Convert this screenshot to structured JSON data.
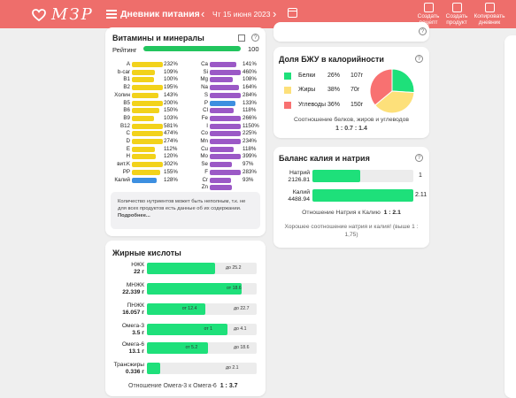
{
  "header": {
    "logo_text": "МЗР",
    "title": "Дневник питания",
    "date": "Чт 15 июня 2023",
    "actions": [
      {
        "line1": "Создать",
        "line2": "рецепт"
      },
      {
        "line1": "Создать",
        "line2": "продукт"
      },
      {
        "line1": "Копировать",
        "line2": "дневник"
      }
    ]
  },
  "vitamins": {
    "title": "Витамины и минералы",
    "rating_label": "Рейтинг",
    "rating_value": "100",
    "rating_fraction": 1.0,
    "left": [
      {
        "name": "A",
        "pct": "232%",
        "value": 232
      },
      {
        "name": "b-car",
        "pct": "109%",
        "value": 109
      },
      {
        "name": "B1",
        "pct": "100%",
        "value": 100
      },
      {
        "name": "B2",
        "pct": "195%",
        "value": 195
      },
      {
        "name": "Холин",
        "pct": "143%",
        "value": 143
      },
      {
        "name": "B5",
        "pct": "200%",
        "value": 200
      },
      {
        "name": "B6",
        "pct": "150%",
        "value": 150
      },
      {
        "name": "B9",
        "pct": "103%",
        "value": 103
      },
      {
        "name": "B12",
        "pct": "581%",
        "value": 581
      },
      {
        "name": "C",
        "pct": "474%",
        "value": 474
      },
      {
        "name": "D",
        "pct": "274%",
        "value": 274
      },
      {
        "name": "E",
        "pct": "112%",
        "value": 112
      },
      {
        "name": "H",
        "pct": "120%",
        "value": 120
      },
      {
        "name": "вит.K",
        "pct": "302%",
        "value": 302
      },
      {
        "name": "PP",
        "pct": "155%",
        "value": 155
      },
      {
        "name": "Калий",
        "pct": "128%",
        "value": 128
      }
    ],
    "right": [
      {
        "name": "Ca",
        "pct": "141%",
        "value": 141
      },
      {
        "name": "Si",
        "pct": "460%",
        "value": 460
      },
      {
        "name": "Mg",
        "pct": "108%",
        "value": 108
      },
      {
        "name": "Na",
        "pct": "164%",
        "value": 164
      },
      {
        "name": "S",
        "pct": "284%",
        "value": 284
      },
      {
        "name": "P",
        "pct": "133%",
        "value": 133
      },
      {
        "name": "Cl",
        "pct": "118%",
        "value": 118
      },
      {
        "name": "Fe",
        "pct": "266%",
        "value": 266
      },
      {
        "name": "I",
        "pct": "1150%",
        "value": 1150
      },
      {
        "name": "Co",
        "pct": "225%",
        "value": 225
      },
      {
        "name": "Mn",
        "pct": "234%",
        "value": 234
      },
      {
        "name": "Cu",
        "pct": "118%",
        "value": 118
      },
      {
        "name": "Mo",
        "pct": "399%",
        "value": 399
      },
      {
        "name": "Se",
        "pct": "97%",
        "value": 97
      },
      {
        "name": "F",
        "pct": "283%",
        "value": 283
      },
      {
        "name": "Cr",
        "pct": "93%",
        "value": 93
      },
      {
        "name": "Zn",
        "pct": "",
        "value": 100
      }
    ],
    "note_text": "Количество нутриентов может быть неполным, т.к. не для всех продуктов есть данные об их содержании.",
    "note_link": "Подробнее...",
    "colors": {
      "vitamin": "#f2d21b",
      "mineral": "#9b59c6",
      "potassium": "#3d8fe0",
      "zinc": "#9b59c6",
      "rating": "#22c55e"
    }
  },
  "fatty": {
    "title": "Жирные кислоты",
    "rows": [
      {
        "name": "НЖК",
        "value": "22 г",
        "fill": 0.62,
        "label": "до 25.2"
      },
      {
        "name": "МНЖК",
        "value": "22.339 г",
        "fill": 0.86,
        "label": "от 18.6"
      },
      {
        "name": "ПНЖК",
        "value": "16.057 г",
        "fill": 0.53,
        "label": "от 12.4",
        "label2": "до 22.7"
      },
      {
        "name": "Омега-3",
        "value": "3.5 г",
        "fill": 0.73,
        "label": "от 1",
        "label2": "до 4.1"
      },
      {
        "name": "Омега-6",
        "value": "13.1 г",
        "fill": 0.56,
        "label": "от 5.2",
        "label2": "до 18.6"
      },
      {
        "name": "Трансжиры",
        "value": "0.336 г",
        "fill": 0.12,
        "label": "до 2.1"
      }
    ],
    "ratio_label": "Отношение Омега-3 к Омега-6",
    "ratio_value": "1 : 3.7"
  },
  "bju": {
    "title": "Доля БЖУ в калорийности",
    "rows": [
      {
        "name": "Белки",
        "pct": "26%",
        "grams": "107г",
        "color": "#1ee07a",
        "value": 26
      },
      {
        "name": "Жиры",
        "pct": "38%",
        "grams": "70г",
        "color": "#fde07a",
        "value": 38
      },
      {
        "name": "Углеводы",
        "pct": "36%",
        "grams": "150г",
        "color": "#f87171",
        "value": 36
      }
    ],
    "ratio_label": "Соотношение белков, жиров и углеводов",
    "ratio_value": "1 : 0.7 : 1.4"
  },
  "kna": {
    "title": "Баланс калия и натрия",
    "sodium_label": "Натрий",
    "sodium_value": "2126.81",
    "sodium_fill": 0.47,
    "sodium_ratio": "1",
    "potassium_label": "Калий",
    "potassium_value": "4488.94",
    "potassium_fill": 1.0,
    "potassium_ratio": "2.11",
    "ratio_label": "Отношение Натрия к Калию",
    "ratio_value": "1 : 2.1",
    "good_text": "Хорошее соотношение натрия и калия! (выше 1 : 1,75)"
  }
}
